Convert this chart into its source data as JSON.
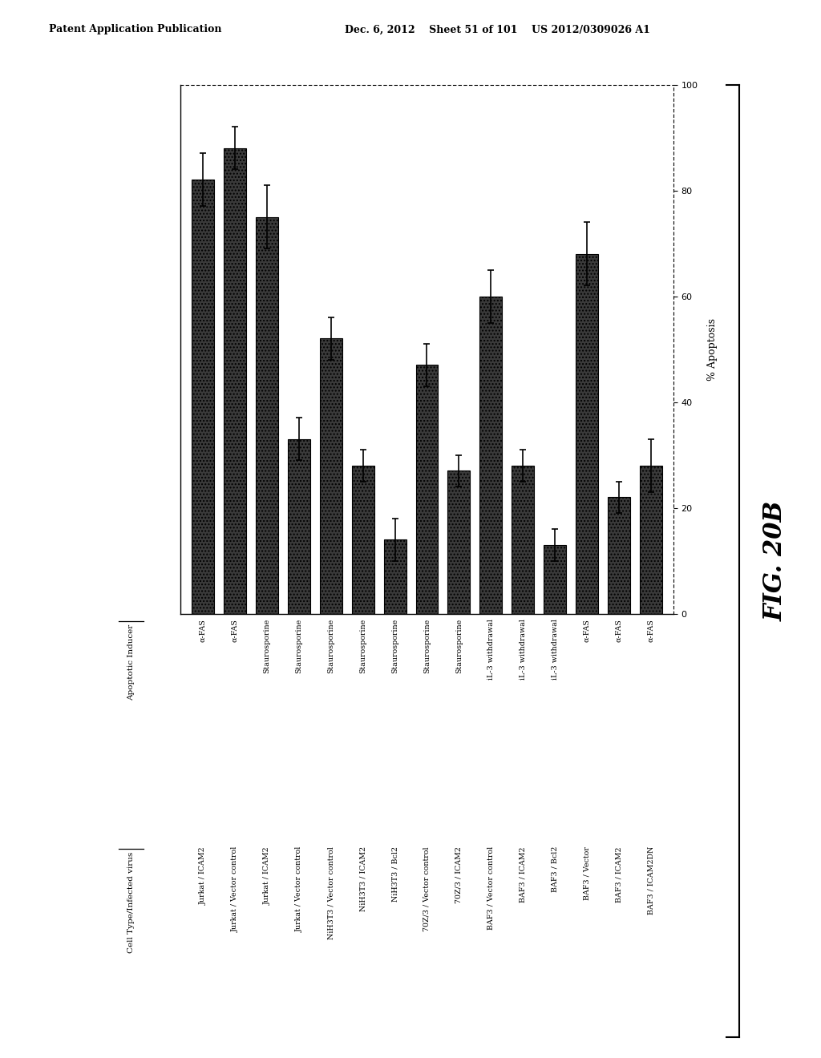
{
  "bars": [
    {
      "value": 82,
      "err": 5,
      "label_inducer": "α-FAS",
      "label_cell": "Jurkat / ICAM2"
    },
    {
      "value": 88,
      "err": 4,
      "label_inducer": "α-FAS",
      "label_cell": "Jurkat / Vector control"
    },
    {
      "value": 75,
      "err": 6,
      "label_inducer": "Staurosporine",
      "label_cell": "Jurkat / ICAM2"
    },
    {
      "value": 33,
      "err": 4,
      "label_inducer": "Staurosporine",
      "label_cell": "Jurkat / Vector control"
    },
    {
      "value": 52,
      "err": 4,
      "label_inducer": "Staurosporine",
      "label_cell": "NiH3T3 / Vector control"
    },
    {
      "value": 28,
      "err": 3,
      "label_inducer": "Staurosporine",
      "label_cell": "NiH3T3 / ICAM2"
    },
    {
      "value": 14,
      "err": 4,
      "label_inducer": "Staurosporine",
      "label_cell": "NiH3T3 / Bcl2"
    },
    {
      "value": 47,
      "err": 4,
      "label_inducer": "Staurosporine",
      "label_cell": "70Z/3 / Vector control"
    },
    {
      "value": 27,
      "err": 3,
      "label_inducer": "Staurosporine",
      "label_cell": "70Z/3 / ICAM2"
    },
    {
      "value": 60,
      "err": 5,
      "label_inducer": "iL-3 withdrawal",
      "label_cell": "BAF3 / Vector control"
    },
    {
      "value": 28,
      "err": 3,
      "label_inducer": "iL-3 withdrawal",
      "label_cell": "BAF3 / ICAM2"
    },
    {
      "value": 13,
      "err": 3,
      "label_inducer": "iL-3 withdrawal",
      "label_cell": "BAF3 / Bcl2"
    },
    {
      "value": 68,
      "err": 6,
      "label_inducer": "α-FAS",
      "label_cell": "BAF3 / Vector"
    },
    {
      "value": 22,
      "err": 3,
      "label_inducer": "α-FAS",
      "label_cell": "BAF3 / ICAM2"
    },
    {
      "value": 28,
      "err": 5,
      "label_inducer": "α-FAS",
      "label_cell": "BAF3 / ICAM2DN"
    }
  ],
  "bar_color": "#3a3a3a",
  "hatch": "....",
  "ylabel": "% Apoptosis",
  "ylim": [
    0,
    100
  ],
  "yticks": [
    0,
    20,
    40,
    60,
    80,
    100
  ],
  "fig_label": "FIG. 20B",
  "header_inducer": "Apoptotic Inducer",
  "header_cell": "Cell Type/Infected virus",
  "background": "#ffffff",
  "patent_left": "Patent Application Publication",
  "patent_right": "Dec. 6, 2012    Sheet 51 of 101    US 2012/0309026 A1"
}
